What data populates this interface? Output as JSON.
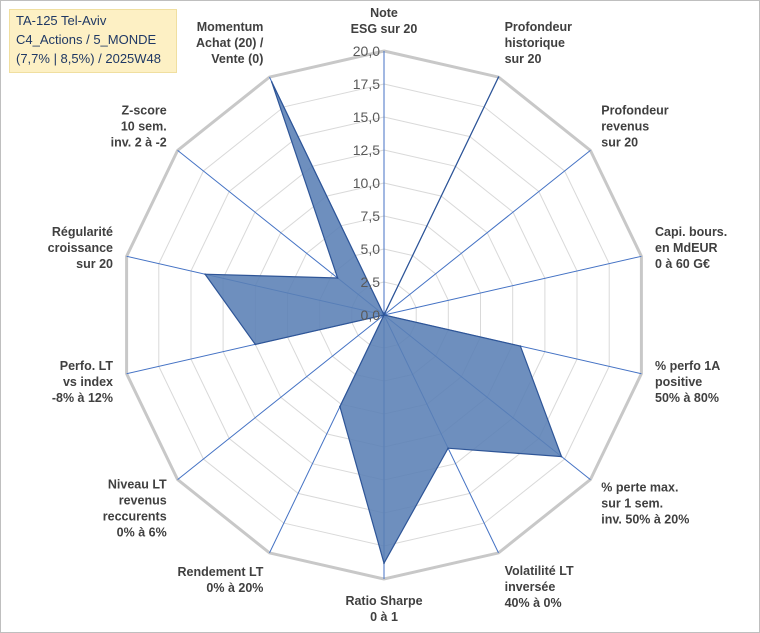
{
  "title_lines": [
    "TA-125 Tel-Aviv",
    "C4_Actions / 5_MONDE",
    "(7,7% | 8,5%) / 2025W48"
  ],
  "chart_data": {
    "type": "radar",
    "rmax": 20,
    "ticks": [
      "0,0",
      "2,5",
      "5,0",
      "7,5",
      "10,0",
      "12,5",
      "15,0",
      "17,5",
      "20,0"
    ],
    "axes": [
      {
        "lines": [
          "Note",
          "ESG sur 20"
        ],
        "value": 0
      },
      {
        "lines": [
          "Profondeur",
          "historique",
          "sur 20"
        ],
        "value": 20
      },
      {
        "lines": [
          "Profondeur",
          "revenus",
          "sur 20"
        ],
        "value": 0
      },
      {
        "lines": [
          "Capi. bours.",
          "en MdEUR",
          "0 à 60 G€"
        ],
        "value": 0
      },
      {
        "lines": [
          "% perfo 1A",
          "positive",
          "50% à 80%"
        ],
        "value": 10.6
      },
      {
        "lines": [
          "% perte max.",
          "sur 1 sem.",
          "inv. 50% à 20%"
        ],
        "value": 17.2
      },
      {
        "lines": [
          "Volatilité LT",
          "inversée",
          "40% à 0%"
        ],
        "value": 11.2
      },
      {
        "lines": [
          "Ratio Sharpe",
          "0 à 1"
        ],
        "value": 18.8
      },
      {
        "lines": [
          "Rendement LT",
          "0% à 20%"
        ],
        "value": 7.7
      },
      {
        "lines": [
          "Niveau LT",
          "revenus",
          "reccurents",
          "0% à 6%"
        ],
        "value": 0
      },
      {
        "lines": [
          "Perfo. LT",
          "vs index",
          "-8% à 12%"
        ],
        "value": 10
      },
      {
        "lines": [
          "Régularité",
          "croissance",
          "sur 20"
        ],
        "value": 13.9
      },
      {
        "lines": [
          "Z-score",
          "10 sem.",
          "inv. 2 à -2"
        ],
        "value": 4.5
      },
      {
        "lines": [
          "Momentum",
          "Achat (20) /",
          "Vente (0)"
        ],
        "value": 19.6
      }
    ],
    "fill_color": "#5a7fb5",
    "line_color": "#2e5597"
  }
}
